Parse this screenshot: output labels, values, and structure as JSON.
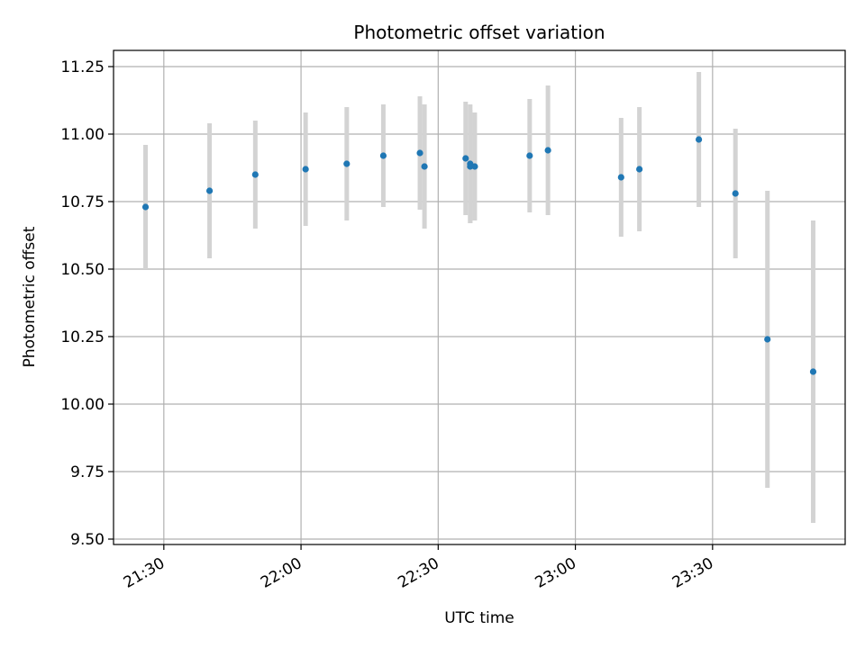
{
  "chart_data": {
    "type": "scatter",
    "title": "Photometric offset variation",
    "xlabel": "UTC time",
    "ylabel": "Photometric offset",
    "grid": true,
    "xlim": [
      "21:19",
      "23:59"
    ],
    "ylim": [
      9.48,
      11.31
    ],
    "x_ticks": [
      "21:30",
      "22:00",
      "22:30",
      "23:00",
      "23:30"
    ],
    "y_ticks": [
      9.5,
      9.75,
      10.0,
      10.25,
      10.5,
      10.75,
      11.0,
      11.25
    ],
    "y_tick_labels": [
      "9.50",
      "9.75",
      "10.00",
      "10.25",
      "10.50",
      "10.75",
      "11.00",
      "11.25"
    ],
    "colors": {
      "point": "#1f77b4",
      "errorbar": "#d3d3d3",
      "grid": "#b0b0b0"
    },
    "points": [
      {
        "x": "21:26",
        "y": 10.73,
        "err": 0.23
      },
      {
        "x": "21:40",
        "y": 10.79,
        "err": 0.25
      },
      {
        "x": "21:50",
        "y": 10.85,
        "err": 0.2
      },
      {
        "x": "22:01",
        "y": 10.87,
        "err": 0.21
      },
      {
        "x": "22:10",
        "y": 10.89,
        "err": 0.21
      },
      {
        "x": "22:18",
        "y": 10.92,
        "err": 0.19
      },
      {
        "x": "22:26",
        "y": 10.93,
        "err": 0.21
      },
      {
        "x": "22:27",
        "y": 10.88,
        "err": 0.23
      },
      {
        "x": "22:36",
        "y": 10.91,
        "err": 0.21
      },
      {
        "x": "22:37",
        "y": 10.89,
        "err": 0.22
      },
      {
        "x": "22:37",
        "y": 10.88,
        "err": 0.21
      },
      {
        "x": "22:38",
        "y": 10.88,
        "err": 0.2
      },
      {
        "x": "22:50",
        "y": 10.92,
        "err": 0.21
      },
      {
        "x": "22:54",
        "y": 10.94,
        "err": 0.24
      },
      {
        "x": "23:10",
        "y": 10.84,
        "err": 0.22
      },
      {
        "x": "23:14",
        "y": 10.87,
        "err": 0.23
      },
      {
        "x": "23:27",
        "y": 10.98,
        "err": 0.25
      },
      {
        "x": "23:35",
        "y": 10.78,
        "err": 0.24
      },
      {
        "x": "23:42",
        "y": 10.24,
        "err": 0.55
      },
      {
        "x": "23:52",
        "y": 10.12,
        "err": 0.56
      }
    ]
  }
}
